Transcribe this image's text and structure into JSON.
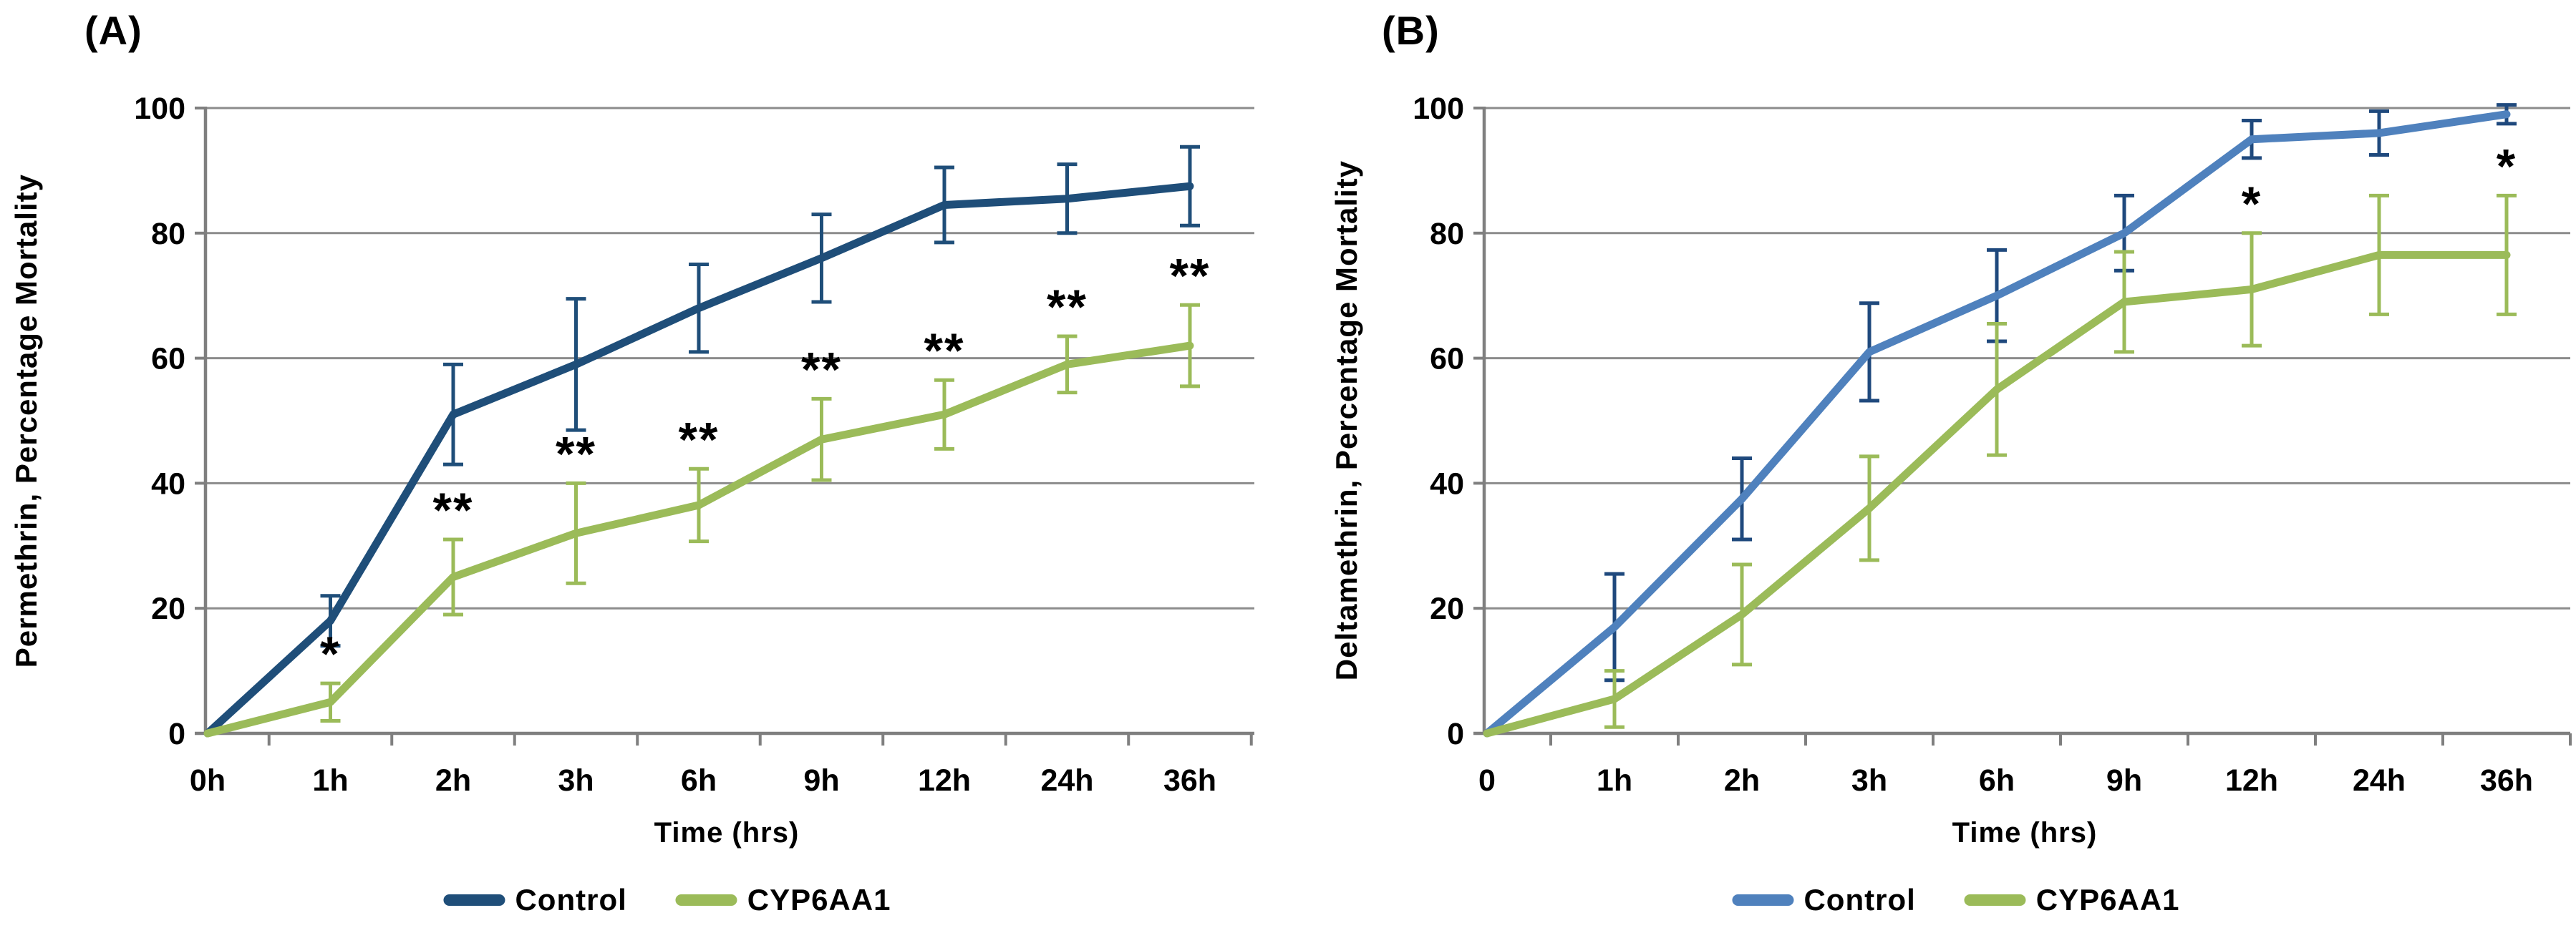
{
  "figure": {
    "background": "#FFFFFF",
    "text_color": "#000000",
    "grid_color": "#8C8C8C",
    "axis_color": "#7F7F7F"
  },
  "chart_data": [
    {
      "type": "line",
      "title": "(A)",
      "xlabel": "Time (hrs)",
      "ylabel": "Permethrin, Percentage Mortality",
      "categories": [
        "0h",
        "1h",
        "2h",
        "3h",
        "6h",
        "9h",
        "12h",
        "24h",
        "36h"
      ],
      "ylim": [
        0,
        100
      ],
      "yticks": [
        0,
        20,
        40,
        60,
        80,
        100
      ],
      "grid": true,
      "legend_position": "bottom",
      "series": [
        {
          "name": "Control",
          "color": "#1F4E79",
          "error_color": "#1F4E79",
          "values": [
            0,
            18,
            51,
            59,
            68,
            76,
            84.5,
            85.5,
            87.5
          ],
          "error": [
            0,
            4,
            8,
            10.5,
            7,
            7,
            6,
            5.5,
            6.3
          ]
        },
        {
          "name": "CYP6AA1",
          "color": "#9BBB59",
          "error_color": "#9BBB59",
          "values": [
            0,
            5,
            25,
            32,
            36.5,
            47,
            51,
            59,
            62
          ],
          "error": [
            0,
            3,
            6,
            8,
            5.8,
            6.5,
            5.5,
            4.5,
            6.5
          ]
        }
      ],
      "annotations": [
        {
          "x": "1h",
          "series": "CYP6AA1",
          "text": "*"
        },
        {
          "x": "2h",
          "series": "CYP6AA1",
          "text": "**"
        },
        {
          "x": "3h",
          "series": "CYP6AA1",
          "text": "**"
        },
        {
          "x": "6h",
          "series": "CYP6AA1",
          "text": "**"
        },
        {
          "x": "9h",
          "series": "CYP6AA1",
          "text": "**"
        },
        {
          "x": "12h",
          "series": "CYP6AA1",
          "text": "**"
        },
        {
          "x": "24h",
          "series": "CYP6AA1",
          "text": "**"
        },
        {
          "x": "36h",
          "series": "CYP6AA1",
          "text": "**"
        }
      ]
    },
    {
      "type": "line",
      "title": "(B)",
      "xlabel": "Time (hrs)",
      "ylabel": "Deltamethrin, Percentage Mortality",
      "categories": [
        "0",
        "1h",
        "2h",
        "3h",
        "6h",
        "9h",
        "12h",
        "24h",
        "36h"
      ],
      "ylim": [
        0,
        100
      ],
      "yticks": [
        0,
        20,
        40,
        60,
        80,
        100
      ],
      "grid": true,
      "legend_position": "bottom",
      "series": [
        {
          "name": "Control",
          "color": "#4F81BD",
          "error_color": "#1F497D",
          "values": [
            0,
            17,
            37.5,
            61,
            70,
            80,
            95,
            96,
            99
          ],
          "error": [
            0,
            8.5,
            6.5,
            7.8,
            7.3,
            6,
            3,
            3.5,
            1.5
          ]
        },
        {
          "name": "CYP6AA1",
          "color": "#9BBB59",
          "error_color": "#9BBB59",
          "values": [
            0,
            5.5,
            19,
            36,
            55,
            69,
            71,
            76.5,
            76.5
          ],
          "error": [
            0,
            4.5,
            8,
            8.3,
            10.5,
            8,
            9,
            9.5,
            9.5
          ]
        }
      ],
      "annotations": [
        {
          "x": "12h",
          "series": "CYP6AA1",
          "text": "*"
        },
        {
          "x": "36h",
          "series": "CYP6AA1",
          "text": "*"
        }
      ]
    }
  ]
}
